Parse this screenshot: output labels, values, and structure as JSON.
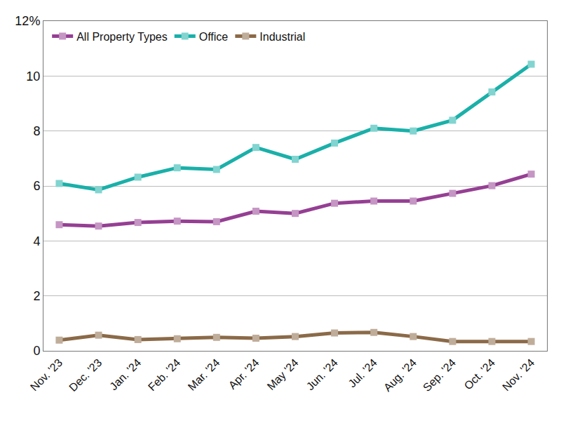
{
  "chart_data": {
    "type": "line",
    "categories": [
      "Nov. '23",
      "Dec. '23",
      "Jan. '24",
      "Feb. '24",
      "Mar. '24",
      "Apr. '24",
      "May '24",
      "Jun. '24",
      "Jul. '24",
      "Aug. '24",
      "Sep. '24",
      "Oct. '24",
      "Nov. '24"
    ],
    "series": [
      {
        "name": "All Property Types",
        "color": "#953f93",
        "marker": "square",
        "values": [
          4.59,
          4.54,
          4.67,
          4.72,
          4.7,
          5.08,
          5.0,
          5.37,
          5.45,
          5.45,
          5.73,
          6.01,
          6.43
        ]
      },
      {
        "name": "Office",
        "color": "#1ab0a9",
        "marker": "square",
        "values": [
          6.09,
          5.86,
          6.32,
          6.66,
          6.6,
          7.4,
          6.97,
          7.56,
          8.1,
          8.0,
          8.39,
          9.42,
          10.43
        ]
      },
      {
        "name": "Industrial",
        "color": "#8b6a48",
        "marker": "square",
        "values": [
          0.39,
          0.57,
          0.41,
          0.44,
          0.49,
          0.46,
          0.52,
          0.65,
          0.67,
          0.52,
          0.34,
          0.34,
          0.34
        ]
      }
    ],
    "ylim": [
      0,
      12
    ],
    "yticks": [
      0,
      2,
      4,
      6,
      8,
      10,
      {
        "value": 12,
        "label": "12%"
      }
    ],
    "grid": true,
    "legend": "upper left"
  }
}
